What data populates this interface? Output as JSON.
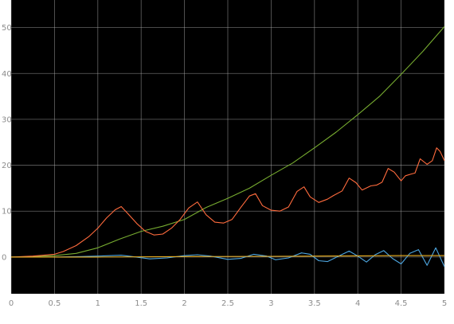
{
  "chart_data": {
    "type": "line",
    "title": "",
    "xlabel": "",
    "ylabel": "",
    "xlim": [
      0,
      5
    ],
    "ylim": [
      -8,
      56
    ],
    "grid": true,
    "legend": "none",
    "background": "#000000",
    "gridColor": "#b4b4b4",
    "x_ticks": [
      {
        "value": 0,
        "label": "0"
      },
      {
        "value": 0.5,
        "label": "0.5"
      },
      {
        "value": 1,
        "label": "1"
      },
      {
        "value": 1.5,
        "label": "1.5"
      },
      {
        "value": 2,
        "label": "2"
      },
      {
        "value": 2.5,
        "label": "2.5"
      },
      {
        "value": 3,
        "label": "3"
      },
      {
        "value": 3.5,
        "label": "3.5"
      },
      {
        "value": 4,
        "label": "4"
      },
      {
        "value": 4.5,
        "label": "4.5"
      },
      {
        "value": 5,
        "label": "5"
      }
    ],
    "y_ticks": [
      {
        "value": 0,
        "label": "0"
      },
      {
        "value": 10,
        "label": "10"
      },
      {
        "value": 20,
        "label": "20"
      },
      {
        "value": 30,
        "label": "30"
      },
      {
        "value": 40,
        "label": "40"
      },
      {
        "value": 50,
        "label": "50"
      }
    ],
    "series": [
      {
        "color": "#77ac30",
        "x": [
          0,
          0.25,
          0.5,
          0.75,
          1.0,
          1.25,
          1.5,
          1.75,
          2.0,
          2.25,
          2.5,
          2.75,
          3.0,
          3.25,
          3.5,
          3.75,
          4.0,
          4.25,
          4.5,
          4.75,
          5.0
        ],
        "y": [
          0,
          0.1,
          0.3,
          0.8,
          2.0,
          3.9,
          5.6,
          6.7,
          8.2,
          10.8,
          12.8,
          15.0,
          17.8,
          20.5,
          23.8,
          27.2,
          31.0,
          35.0,
          39.8,
          44.8,
          50.2
        ]
      },
      {
        "color": "#ff6b3d",
        "x": [
          0,
          0.25,
          0.5,
          0.6,
          0.75,
          0.9,
          1.0,
          1.1,
          1.2,
          1.27,
          1.35,
          1.45,
          1.55,
          1.65,
          1.75,
          1.85,
          1.95,
          2.05,
          2.15,
          2.25,
          2.35,
          2.45,
          2.55,
          2.65,
          2.75,
          2.82,
          2.9,
          3.0,
          3.1,
          3.2,
          3.3,
          3.38,
          3.45,
          3.55,
          3.65,
          3.72,
          3.82,
          3.9,
          3.98,
          4.05,
          4.15,
          4.22,
          4.28,
          4.35,
          4.42,
          4.5,
          4.55,
          4.62,
          4.66,
          4.72,
          4.8,
          4.86,
          4.91,
          4.95,
          5.0
        ],
        "y": [
          0,
          0.2,
          0.6,
          1.2,
          2.5,
          4.5,
          6.3,
          8.5,
          10.3,
          11.0,
          9.4,
          7.3,
          5.6,
          4.8,
          5.0,
          6.3,
          8.2,
          10.7,
          12.0,
          9.2,
          7.6,
          7.4,
          8.2,
          10.8,
          13.3,
          13.8,
          11.2,
          10.2,
          10.0,
          10.9,
          14.3,
          15.3,
          13.1,
          11.9,
          12.6,
          13.4,
          14.4,
          17.2,
          16.2,
          14.6,
          15.5,
          15.7,
          16.3,
          19.3,
          18.5,
          16.6,
          17.7,
          18.1,
          18.3,
          21.4,
          20.2,
          21.0,
          23.8,
          23.0,
          21.0
        ]
      },
      {
        "color": "#4da6e0",
        "x": [
          0,
          0.5,
          0.8,
          1.0,
          1.15,
          1.27,
          1.4,
          1.6,
          1.8,
          2.0,
          2.15,
          2.3,
          2.5,
          2.65,
          2.8,
          2.95,
          3.05,
          3.2,
          3.35,
          3.45,
          3.55,
          3.65,
          3.8,
          3.9,
          4.0,
          4.1,
          4.2,
          4.3,
          4.4,
          4.5,
          4.6,
          4.7,
          4.8,
          4.9,
          5.0
        ],
        "y": [
          0,
          0,
          0.1,
          0.2,
          0.3,
          0.4,
          0.1,
          -0.4,
          -0.2,
          0.3,
          0.5,
          0.2,
          -0.5,
          -0.3,
          0.6,
          0.2,
          -0.6,
          -0.2,
          0.9,
          0.6,
          -0.8,
          -1.0,
          0.4,
          1.3,
          0.2,
          -1.1,
          0.5,
          1.4,
          -0.3,
          -1.5,
          0.8,
          1.6,
          -1.8,
          2.0,
          -2.1
        ]
      },
      {
        "color": "#edb120",
        "x": [
          0,
          1.0,
          2.0,
          3.0,
          3.5,
          4.0,
          4.5,
          5.0
        ],
        "y": [
          0,
          0,
          0.1,
          0.15,
          0.2,
          0.25,
          0.3,
          0.3
        ]
      }
    ]
  }
}
